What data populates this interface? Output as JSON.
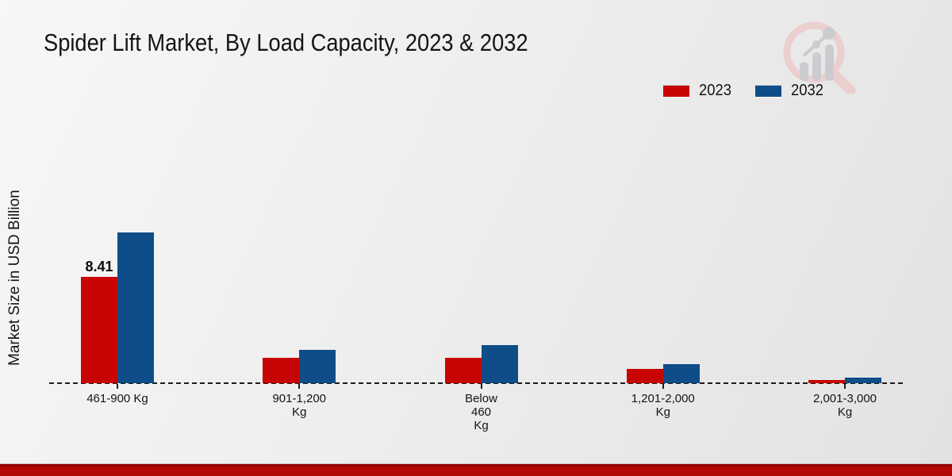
{
  "header": {
    "title": "Spider Lift Market, By Load Capacity, 2023 & 2032"
  },
  "ylabel": "Market Size in USD Billion",
  "legend": {
    "items": [
      "2023",
      "2032"
    ],
    "position": "top-right"
  },
  "watermark": {
    "name": "market-research-magnifier-logo",
    "circle_color": "#eccaca",
    "bars_color": "#c5c7cb"
  },
  "footer": {
    "bar_color": "#b30606",
    "bar_edge_color": "#8f0303"
  },
  "chart_data": {
    "type": "bar",
    "title": "Spider Lift Market, By Load Capacity, 2023 & 2032",
    "xlabel": "",
    "ylabel": "Market Size in USD Billion",
    "categories": [
      "461-900 Kg",
      "901-1,200 Kg",
      "Below 460 Kg",
      "1,201-2,000 Kg",
      "2,001-3,000 Kg"
    ],
    "tick_label_lines": [
      [
        "461-900 Kg"
      ],
      [
        "901-1,200",
        "Kg"
      ],
      [
        "Below",
        "460",
        "Kg"
      ],
      [
        "1,201-2,000",
        "Kg"
      ],
      [
        "2,001-3,000",
        "Kg"
      ]
    ],
    "series": [
      {
        "name": "2023",
        "color": "#c80404",
        "values": [
          8.41,
          2.0,
          2.0,
          1.15,
          0.25
        ]
      },
      {
        "name": "2032",
        "color": "#0e4d87",
        "values": [
          11.9,
          2.65,
          3.0,
          1.5,
          0.45
        ]
      }
    ],
    "annotations": [
      {
        "text": "8.41",
        "series_index": 0,
        "category_index": 0
      }
    ],
    "ylim": [
      0,
      12.5
    ],
    "grid": false,
    "baseline_style": "dashed",
    "legend_position": "top-right"
  }
}
